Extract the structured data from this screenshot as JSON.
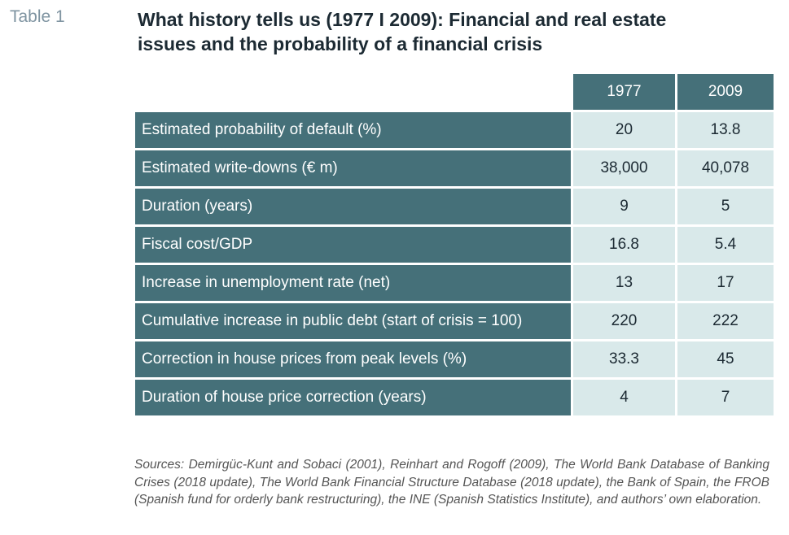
{
  "table_label": "Table 1",
  "title": {
    "line1": "What history tells us (1977 I 2009): Financial and real estate",
    "line2": "issues and the probability of a financial crisis"
  },
  "table": {
    "columns": [
      "1977",
      "2009"
    ],
    "rows": [
      {
        "label": "Estimated probability of default (%)",
        "v1977": "20",
        "v2009": "13.8"
      },
      {
        "label": "Estimated write-downs (€ m)",
        "v1977": "38,000",
        "v2009": "40,078"
      },
      {
        "label": "Duration (years)",
        "v1977": "9",
        "v2009": "5"
      },
      {
        "label": "Fiscal cost/GDP",
        "v1977": "16.8",
        "v2009": "5.4"
      },
      {
        "label": "Increase in unemployment rate (net)",
        "v1977": "13",
        "v2009": "17"
      },
      {
        "label": "Cumulative increase in public debt (start of crisis = 100)",
        "v1977": "220",
        "v2009": "222"
      },
      {
        "label": "Correction in house prices from peak levels (%)",
        "v1977": "33.3",
        "v2009": "45"
      },
      {
        "label": "Duration of house price correction (years)",
        "v1977": "4",
        "v2009": "7"
      }
    ]
  },
  "sources": "Sources: Demirgüc-Kunt and Sobaci (2001), Reinhart and Rogoff (2009), The World Bank Database of Banking Crises (2018 update), The World Bank Financial Structure Database (2018 update), the Bank of Spain, the FROB (Spanish fund for orderly bank restructuring), the INE (Spanish Statistics Institute), and authors’ own elaboration.",
  "colors": {
    "header_bg": "#457079",
    "value_bg": "#d9e9ea",
    "label_color": "#7f94a1"
  }
}
